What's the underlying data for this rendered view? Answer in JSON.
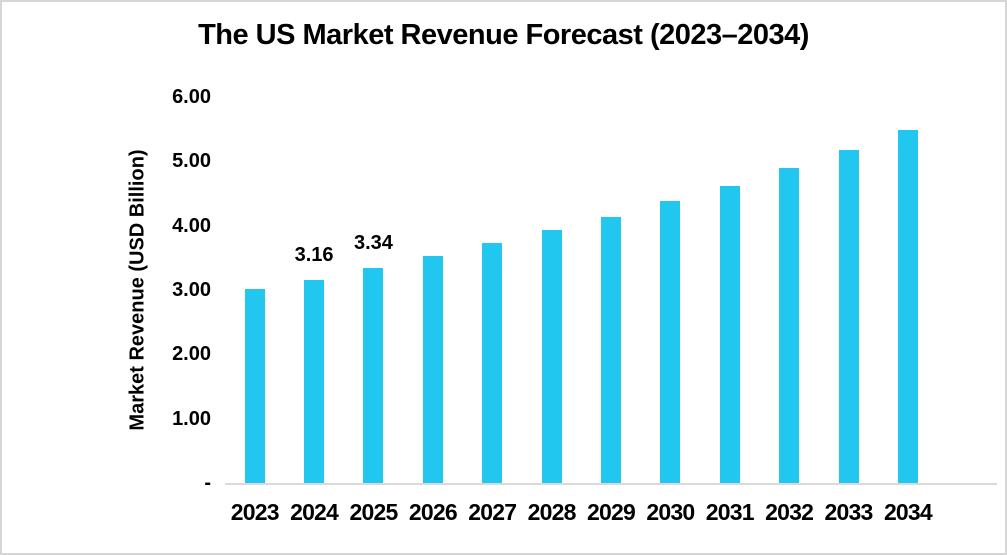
{
  "frame": {
    "background": "#ffffff",
    "border_color": "#d6d6d6"
  },
  "chart_data": {
    "type": "bar",
    "title": "The US Market Revenue Forecast (2023–2034)",
    "xlabel": "",
    "ylabel": "Market Revenue (USD Billion)",
    "categories": [
      "2023",
      "2024",
      "2025",
      "2026",
      "2027",
      "2028",
      "2029",
      "2030",
      "2031",
      "2032",
      "2033",
      "2034"
    ],
    "values": [
      3.01,
      3.16,
      3.34,
      3.53,
      3.73,
      3.93,
      4.14,
      4.38,
      4.62,
      4.89,
      5.18,
      5.49
    ],
    "data_labels": [
      "",
      "3.16",
      "3.34",
      "",
      "",
      "",
      "",
      "",
      "",
      "",
      "",
      ""
    ],
    "yticks": [
      {
        "label": "6.00",
        "value": 6
      },
      {
        "label": "5.00",
        "value": 5
      },
      {
        "label": "4.00",
        "value": 4
      },
      {
        "label": "3.00",
        "value": 3
      },
      {
        "label": "2.00",
        "value": 2
      },
      {
        "label": "1.00",
        "value": 1
      },
      {
        "label": "-",
        "value": 0
      }
    ],
    "ylim": [
      0,
      6
    ],
    "grid": false,
    "legend": null,
    "bar_color": "#22c7f0",
    "axis_line_color": "#d9d9d9",
    "text_color": "#000000"
  }
}
